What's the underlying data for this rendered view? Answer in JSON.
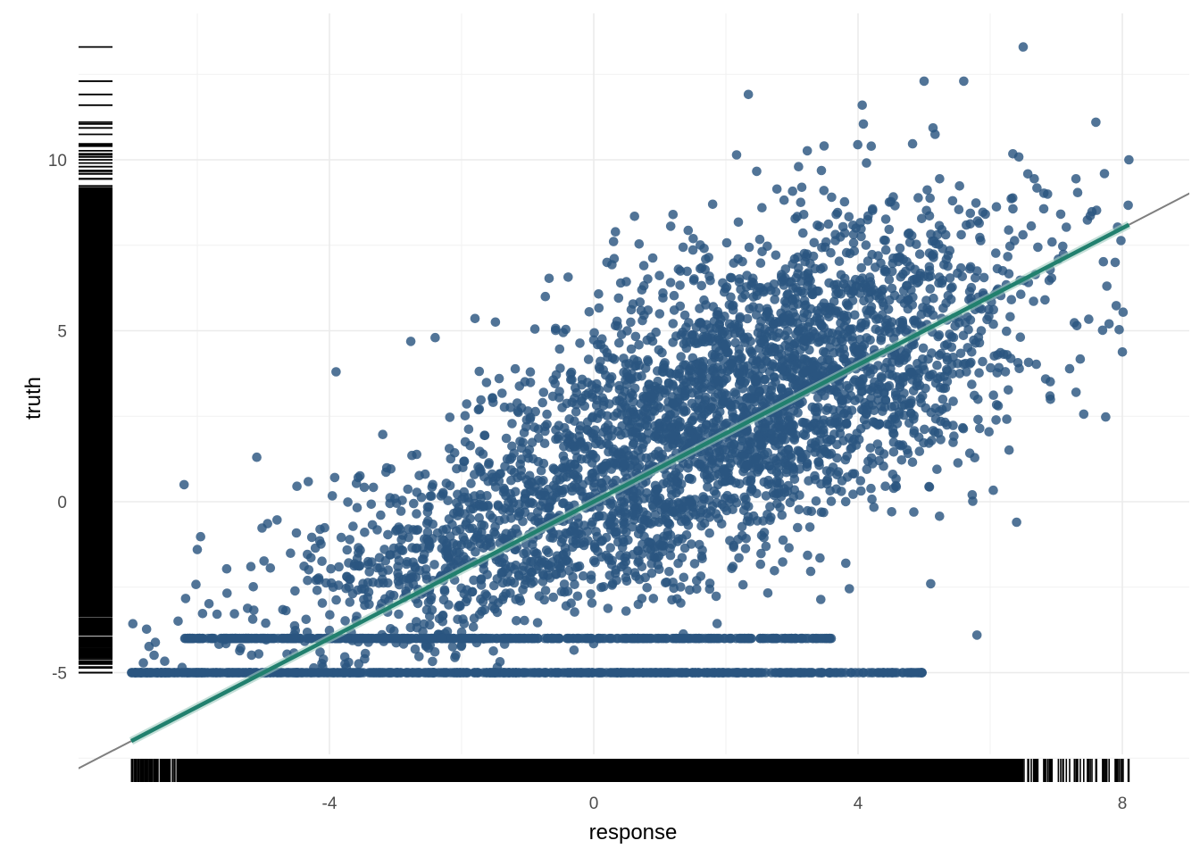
{
  "chart_data": {
    "type": "scatter",
    "title": "",
    "xlabel": "response",
    "ylabel": "truth",
    "xlim": [
      -7.6,
      8.9
    ],
    "ylim": [
      -7.7,
      14.0
    ],
    "x_ticks": [
      -4,
      0,
      4,
      8
    ],
    "x_tick_labels": [
      "-4",
      "0",
      "4",
      "8"
    ],
    "y_ticks": [
      -5,
      0,
      5,
      10
    ],
    "y_tick_labels": [
      "-5",
      "0",
      "5",
      "10"
    ],
    "grid": true,
    "legend": "none",
    "rugs": [
      "bottom",
      "left"
    ],
    "point_count_estimate": 5000,
    "colors": {
      "points": "#2b5680",
      "fit_line": "#21806e",
      "reference_line": "#7f7f7f",
      "rug": "#000000",
      "grid": "#ebebeb"
    },
    "reference_line": {
      "slope": 1,
      "intercept": 0
    },
    "fit_line": {
      "x": [
        -7.0,
        8.1
      ],
      "y": [
        -7.0,
        8.1
      ]
    },
    "point_clusters": [
      {
        "label": "main cloud",
        "x_mean": 2.8,
        "x_sd": 1.9,
        "y_mean": 3.6,
        "y_sd": 2.2,
        "n": 2300
      },
      {
        "label": "lower band",
        "x_mean": -0.8,
        "x_sd": 2.1,
        "y_mean": -0.6,
        "y_sd": 1.6,
        "n": 1300
      },
      {
        "label": "floor at -5",
        "x_range": [
          -7.0,
          5.0
        ],
        "y": -5.0,
        "n": 700
      },
      {
        "label": "floor at -4",
        "x_range": [
          -6.2,
          3.6
        ],
        "y": -4.0,
        "n": 500
      }
    ],
    "sample_points": [
      {
        "x": -6.2,
        "y": 0.5
      },
      {
        "x": -6.0,
        "y": -1.4
      },
      {
        "x": -3.9,
        "y": 3.8
      },
      {
        "x": -5.1,
        "y": 1.3
      },
      {
        "x": -2.4,
        "y": 4.8
      },
      {
        "x": 0.2,
        "y": 7.0
      },
      {
        "x": 1.2,
        "y": 8.4
      },
      {
        "x": 1.8,
        "y": 8.7
      },
      {
        "x": 3.1,
        "y": 9.8
      },
      {
        "x": 4.2,
        "y": 10.4
      },
      {
        "x": 5.0,
        "y": 12.3
      },
      {
        "x": 5.6,
        "y": 12.3
      },
      {
        "x": 6.5,
        "y": 13.3
      },
      {
        "x": 7.6,
        "y": 11.1
      },
      {
        "x": 8.1,
        "y": 10.0
      },
      {
        "x": 7.8,
        "y": 5.2
      },
      {
        "x": 7.3,
        "y": 3.2
      },
      {
        "x": 6.4,
        "y": -0.6
      },
      {
        "x": 5.8,
        "y": -3.9
      },
      {
        "x": 5.1,
        "y": -2.4
      }
    ]
  }
}
